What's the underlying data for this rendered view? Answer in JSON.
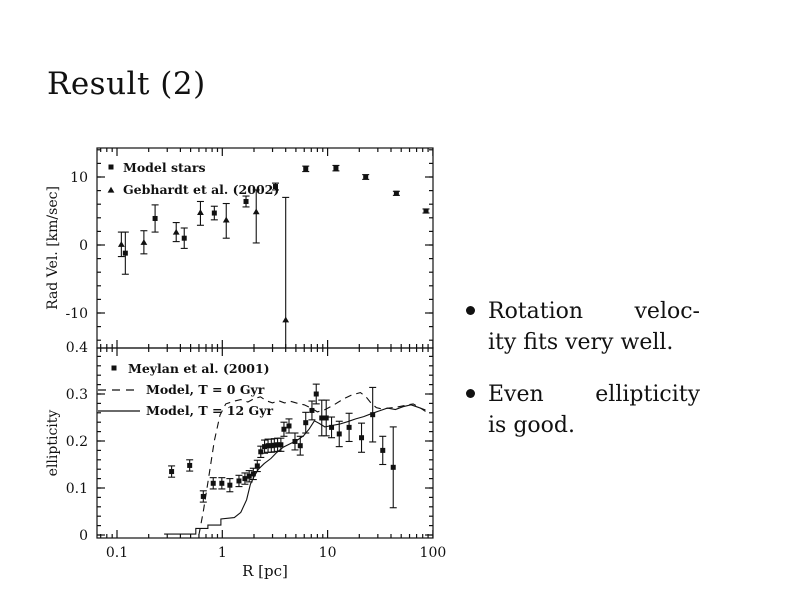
{
  "colors": {
    "ink": "#111111",
    "background": "#ffffff"
  },
  "slide": {
    "title": "Result (2)",
    "bullets": [
      {
        "line1": "Rotation veloc-",
        "line2": "ity fits very well."
      },
      {
        "line1": "Even ellipticity",
        "line2": "is good."
      }
    ]
  },
  "chart_data": [
    {
      "type": "scatter",
      "panel": "top",
      "title": "",
      "xlabel": "",
      "ylabel": "Rad Vel. [km/sec]",
      "xscale": "log",
      "xlim": [
        0.065,
        100
      ],
      "ylim": [
        -15.1,
        14.3
      ],
      "xticks": [
        0.1,
        1,
        10,
        100
      ],
      "xticklabels": [],
      "yticks": [
        -10,
        0,
        10
      ],
      "yticklabels": [
        "-10",
        "0",
        "10"
      ],
      "yminor_step": 2,
      "grid": false,
      "legend_position": "top-left",
      "series": [
        {
          "name": "Model stars",
          "marker": "square",
          "points": [
            [
              0.12,
              -1.2,
              3.1
            ],
            [
              0.23,
              3.9,
              2.0
            ],
            [
              0.435,
              1.0,
              1.5
            ],
            [
              0.84,
              4.7,
              1.0
            ],
            [
              1.68,
              6.4,
              0.8
            ],
            [
              3.2,
              8.6,
              0.5
            ],
            [
              6.2,
              11.2,
              0.4
            ],
            [
              12,
              11.3,
              0.4
            ],
            [
              23,
              10.0,
              0.35
            ],
            [
              45,
              7.6,
              0.3
            ],
            [
              86,
              5.0,
              0.3
            ]
          ]
        },
        {
          "name": "Gebhardt et al. (2002)",
          "marker": "triangle",
          "points": [
            [
              0.11,
              0.1,
              1.8,
              1.8
            ],
            [
              0.18,
              0.4,
              1.7,
              1.7
            ],
            [
              0.365,
              1.9,
              1.4,
              1.4
            ],
            [
              0.62,
              4.8,
              1.9,
              1.6
            ],
            [
              1.09,
              3.7,
              2.7,
              2.4
            ],
            [
              2.1,
              4.9,
              4.6,
              3.2
            ],
            [
              4.0,
              -11.0,
              4.5,
              18.0
            ]
          ]
        }
      ]
    },
    {
      "type": "scatter",
      "panel": "bottom",
      "title": "",
      "xlabel": "R [pc]",
      "ylabel": "ellipticity",
      "xscale": "log",
      "xlim": [
        0.065,
        100
      ],
      "ylim": [
        -0.006,
        0.398
      ],
      "xticks": [
        0.1,
        1,
        10,
        100
      ],
      "xticklabels": [
        "0.1",
        "1",
        "10",
        "100"
      ],
      "yticks": [
        0,
        0.1,
        0.2,
        0.3,
        0.4
      ],
      "yticklabels": [
        "0",
        "0.1",
        "0.2",
        "0.3",
        "0.4"
      ],
      "yminor_step": 0.02,
      "grid": false,
      "legend_position": "top-left",
      "series": [
        {
          "name": "Meylan et al. (2001)",
          "marker": "square",
          "points": [
            [
              0.33,
              0.135,
              0.012
            ],
            [
              0.49,
              0.148,
              0.012
            ],
            [
              0.66,
              0.082,
              0.012
            ],
            [
              0.82,
              0.11,
              0.012
            ],
            [
              0.99,
              0.11,
              0.012
            ],
            [
              1.18,
              0.106,
              0.014
            ],
            [
              1.44,
              0.115,
              0.012
            ],
            [
              1.64,
              0.12,
              0.012
            ],
            [
              1.8,
              0.125,
              0.012
            ],
            [
              1.97,
              0.13,
              0.012
            ],
            [
              2.15,
              0.147,
              0.012
            ],
            [
              2.32,
              0.177,
              0.012
            ],
            [
              2.52,
              0.188,
              0.014
            ],
            [
              2.72,
              0.19,
              0.014
            ],
            [
              2.92,
              0.19,
              0.014
            ],
            [
              3.12,
              0.191,
              0.014
            ],
            [
              3.35,
              0.192,
              0.014
            ],
            [
              3.6,
              0.192,
              0.014
            ],
            [
              3.85,
              0.225,
              0.015
            ],
            [
              4.3,
              0.232,
              0.015
            ],
            [
              4.9,
              0.199,
              0.018
            ],
            [
              5.5,
              0.19,
              0.02
            ],
            [
              6.2,
              0.239,
              0.022
            ],
            [
              7.1,
              0.265,
              0.02
            ],
            [
              7.8,
              0.3,
              0.021
            ],
            [
              8.8,
              0.249,
              0.038
            ],
            [
              9.7,
              0.249,
              0.038
            ],
            [
              10.9,
              0.229,
              0.022
            ],
            [
              12.9,
              0.215,
              0.027
            ],
            [
              16.0,
              0.229,
              0.03
            ],
            [
              21.0,
              0.207,
              0.031
            ],
            [
              26.8,
              0.256,
              0.058
            ],
            [
              33.4,
              0.18,
              0.03
            ],
            [
              42.0,
              0.144,
              0.086
            ]
          ]
        },
        {
          "name": "Model, T = 0 Gyr",
          "style": "dashed",
          "line": [
            [
              0.6,
              0.0
            ],
            [
              0.66,
              0.05
            ],
            [
              0.74,
              0.12
            ],
            [
              0.84,
              0.2
            ],
            [
              0.95,
              0.255
            ],
            [
              1.08,
              0.279
            ],
            [
              1.3,
              0.285
            ],
            [
              1.5,
              0.288
            ],
            [
              1.75,
              0.283
            ],
            [
              2.0,
              0.29
            ],
            [
              2.3,
              0.294
            ],
            [
              2.6,
              0.286
            ],
            [
              3.0,
              0.281
            ],
            [
              3.4,
              0.286
            ],
            [
              3.9,
              0.281
            ],
            [
              4.5,
              0.284
            ],
            [
              5.2,
              0.28
            ],
            [
              6.0,
              0.277
            ],
            [
              7.0,
              0.27
            ],
            [
              8.0,
              0.262
            ],
            [
              9.5,
              0.267
            ],
            [
              11.5,
              0.277
            ],
            [
              14,
              0.289
            ],
            [
              17,
              0.298
            ],
            [
              20.5,
              0.303
            ],
            [
              23,
              0.295
            ],
            [
              26,
              0.28
            ],
            [
              29,
              0.271
            ],
            [
              33,
              0.268
            ],
            [
              38,
              0.27
            ],
            [
              45,
              0.272
            ],
            [
              55,
              0.276
            ],
            [
              65,
              0.279
            ],
            [
              75,
              0.271
            ],
            [
              85,
              0.263
            ]
          ]
        },
        {
          "name": "Model, T = 12 Gyr",
          "style": "solid",
          "line": [
            [
              0.28,
              0.002
            ],
            [
              0.56,
              0.002
            ],
            [
              0.56,
              0.014
            ],
            [
              0.73,
              0.014
            ],
            [
              0.73,
              0.021
            ],
            [
              0.97,
              0.021
            ],
            [
              0.97,
              0.034
            ],
            [
              1.3,
              0.037
            ],
            [
              1.5,
              0.048
            ],
            [
              1.7,
              0.075
            ],
            [
              1.85,
              0.108
            ],
            [
              2.0,
              0.124
            ],
            [
              2.2,
              0.14
            ],
            [
              2.5,
              0.152
            ],
            [
              2.9,
              0.163
            ],
            [
              3.3,
              0.176
            ],
            [
              3.8,
              0.187
            ],
            [
              4.4,
              0.194
            ],
            [
              5.1,
              0.201
            ],
            [
              5.9,
              0.211
            ],
            [
              6.7,
              0.226
            ],
            [
              7.5,
              0.243
            ],
            [
              8.4,
              0.237
            ],
            [
              9.4,
              0.23
            ],
            [
              11,
              0.233
            ],
            [
              13,
              0.236
            ],
            [
              15.5,
              0.241
            ],
            [
              18.5,
              0.247
            ],
            [
              22,
              0.252
            ],
            [
              26,
              0.258
            ],
            [
              31,
              0.264
            ],
            [
              37,
              0.27
            ],
            [
              44,
              0.267
            ],
            [
              52,
              0.273
            ],
            [
              62,
              0.277
            ],
            [
              72,
              0.272
            ],
            [
              85,
              0.266
            ]
          ]
        }
      ]
    }
  ]
}
